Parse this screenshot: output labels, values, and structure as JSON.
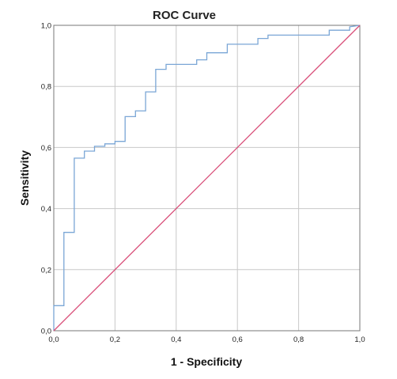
{
  "chart_data": {
    "type": "line",
    "title": "ROC Curve",
    "xlabel": "1 - Specificity",
    "ylabel": "Sensitivity",
    "xlim": [
      0,
      1
    ],
    "ylim": [
      0,
      1
    ],
    "grid": true,
    "x_ticks": [
      "0,0",
      "0,2",
      "0,4",
      "0,6",
      "0,8",
      "1,0"
    ],
    "y_ticks": [
      "0,0",
      "0,2",
      "0,4",
      "0,6",
      "0,8",
      "1,0"
    ],
    "tick_values": [
      0,
      0.2,
      0.4,
      0.6,
      0.8,
      1.0
    ],
    "series": [
      {
        "color": "#7aa6d6",
        "step": true,
        "x": [
          0,
          0,
          0.033,
          0.033,
          0.067,
          0.067,
          0.1,
          0.1,
          0.133,
          0.133,
          0.167,
          0.167,
          0.2,
          0.2,
          0.233,
          0.233,
          0.267,
          0.267,
          0.3,
          0.3,
          0.333,
          0.333,
          0.367,
          0.367,
          0.467,
          0.467,
          0.5,
          0.5,
          0.567,
          0.567,
          0.667,
          0.667,
          0.7,
          0.7,
          0.9,
          0.9,
          0.967,
          0.967,
          1.0
        ],
        "y": [
          0,
          0.082,
          0.082,
          0.322,
          0.322,
          0.565,
          0.565,
          0.588,
          0.588,
          0.604,
          0.604,
          0.612,
          0.612,
          0.62,
          0.62,
          0.701,
          0.701,
          0.72,
          0.72,
          0.782,
          0.782,
          0.856,
          0.856,
          0.872,
          0.872,
          0.887,
          0.887,
          0.91,
          0.91,
          0.938,
          0.938,
          0.957,
          0.957,
          0.968,
          0.968,
          0.984,
          0.984,
          0.995,
          1.0
        ]
      },
      {
        "color": "#d9507a",
        "x": [
          0,
          1
        ],
        "y": [
          0,
          1
        ]
      }
    ]
  }
}
